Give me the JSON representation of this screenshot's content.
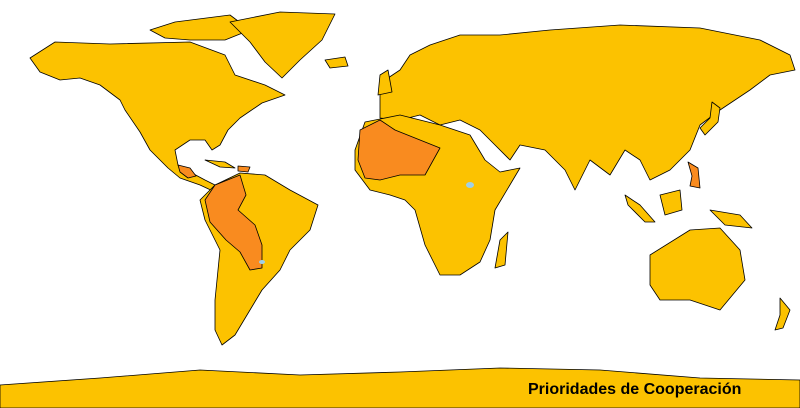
{
  "title": "Prioridades de Cooperación"
}
